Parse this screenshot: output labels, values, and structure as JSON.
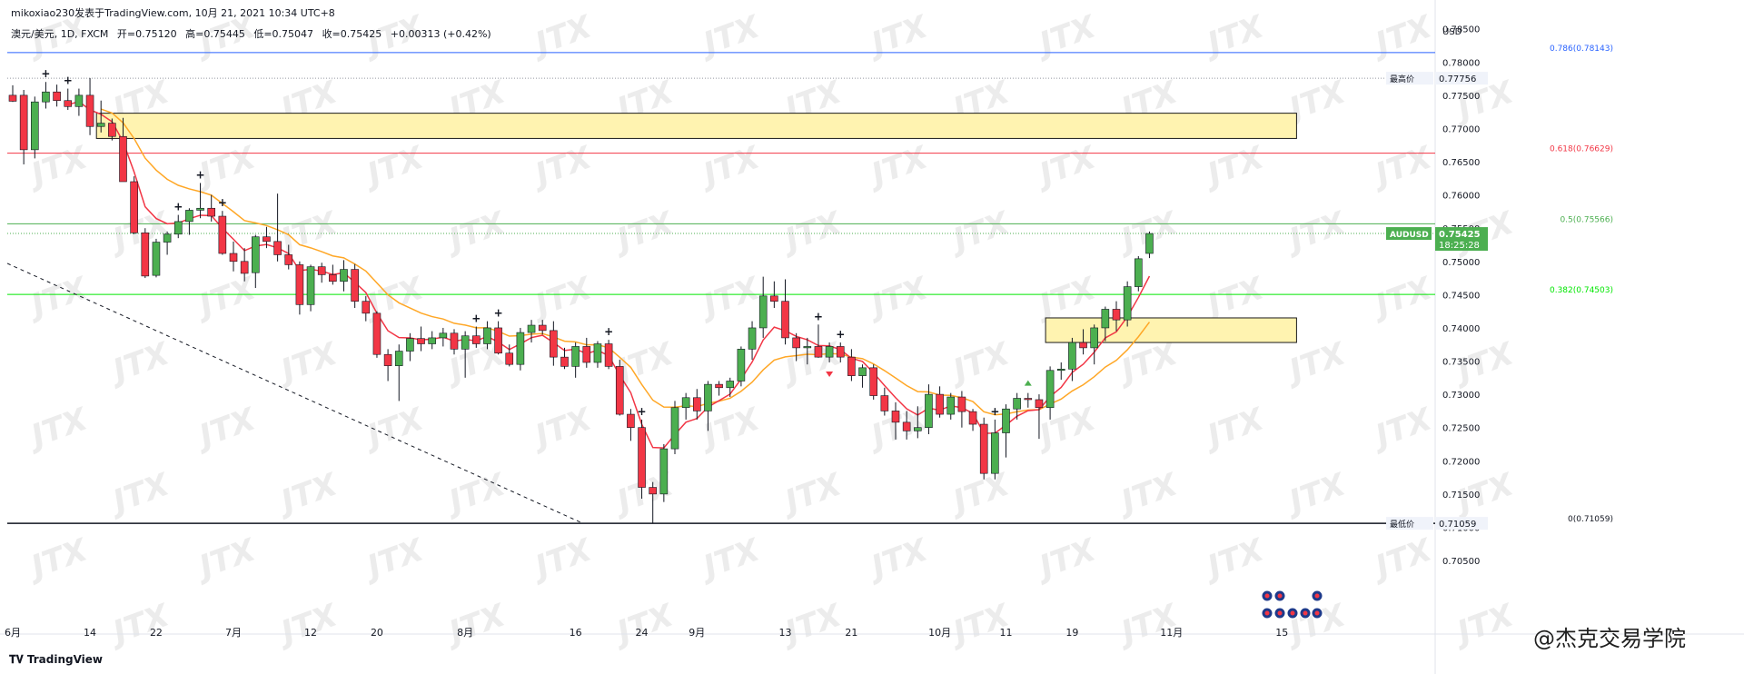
{
  "header": {
    "author_line": "mikoxiao230发表于TradingView.com, 10月 21, 2021 10:34 UTC+8",
    "symbol": "澳元/美元, 1D, FXCM",
    "open": "开=0.75120",
    "high": "高=0.75445",
    "low": "低=0.75047",
    "close": "收=0.75425",
    "change": "+0.00313 (+0.42%)"
  },
  "currency": "USD",
  "footer": {
    "brand": "TradingView",
    "watermark_brand": "@杰克交易学院"
  },
  "watermark_text": "JTX",
  "colors": {
    "up": "#4caf50",
    "down": "#f23645",
    "ma_fast": "#f23645",
    "ma_slow": "#ffa726",
    "fib_1": "#2962ff",
    "fib_618": "#f23645",
    "fib_5": "#4caf50",
    "fib_382": "#00e600",
    "zone": "#fff3b0",
    "zone_border": "#1a1a1a"
  },
  "price_tags": {
    "symbol": "AUDUSD",
    "last": "0.75425",
    "countdown": "18:25:28",
    "high_label": "最高价",
    "high_value": "0.77756",
    "low_label": "最低价",
    "low_value": "0.71059"
  },
  "chart_data": {
    "type": "candlestick",
    "title": "",
    "ylim": [
      0.7035,
      0.7866
    ],
    "y_ticks": [
      "0.78500",
      "0.78000",
      "0.77500",
      "0.77000",
      "0.76500",
      "0.76000",
      "0.75500",
      "0.75000",
      "0.74500",
      "0.74000",
      "0.73500",
      "0.73000",
      "0.72500",
      "0.72000",
      "0.71500",
      "0.71000",
      "0.70500"
    ],
    "x_ticks": [
      {
        "label": "6月",
        "index": 0
      },
      {
        "label": "14",
        "index": 7
      },
      {
        "label": "22",
        "index": 13
      },
      {
        "label": "7月",
        "index": 20
      },
      {
        "label": "12",
        "index": 27
      },
      {
        "label": "20",
        "index": 33
      },
      {
        "label": "8月",
        "index": 41
      },
      {
        "label": "16",
        "index": 51
      },
      {
        "label": "24",
        "index": 57
      },
      {
        "label": "9月",
        "index": 62
      },
      {
        "label": "13",
        "index": 70
      },
      {
        "label": "21",
        "index": 76
      },
      {
        "label": "10月",
        "index": 84
      },
      {
        "label": "11",
        "index": 90
      },
      {
        "label": "19",
        "index": 96
      },
      {
        "label": "11月",
        "index": 105
      },
      {
        "label": "15",
        "index": 115
      }
    ],
    "fib_levels": [
      {
        "label": "0.786(0.78143)",
        "value": 0.78143,
        "color": "#2962ff"
      },
      {
        "label": "0.618(0.76629)",
        "value": 0.76629,
        "color": "#f23645"
      },
      {
        "label": "0.5(0.75566)",
        "value": 0.75566,
        "color": "#4caf50"
      },
      {
        "label": "0.382(0.74503)",
        "value": 0.74503,
        "color": "#00e600"
      },
      {
        "label": "0(0.71059)",
        "value": 0.71059,
        "color": "#131722"
      }
    ],
    "zones": [
      {
        "from_index": 8,
        "to_index": 116,
        "top": 0.7723,
        "bottom": 0.7685
      },
      {
        "from_index": 94,
        "to_index": 116,
        "top": 0.7415,
        "bottom": 0.7378
      }
    ],
    "trendline": {
      "from": {
        "index": 0,
        "value": 0.7497
      },
      "to": {
        "index": 51,
        "value": 0.71059
      }
    },
    "candles": [
      {
        "o": 0.775,
        "h": 0.7765,
        "l": 0.774,
        "c": 0.7741
      },
      {
        "o": 0.775,
        "h": 0.7758,
        "l": 0.7646,
        "c": 0.7668
      },
      {
        "o": 0.7668,
        "h": 0.7748,
        "l": 0.7655,
        "c": 0.774
      },
      {
        "o": 0.774,
        "h": 0.777,
        "l": 0.773,
        "c": 0.7755
      },
      {
        "o": 0.7755,
        "h": 0.7766,
        "l": 0.7733,
        "c": 0.7742
      },
      {
        "o": 0.7742,
        "h": 0.776,
        "l": 0.7728,
        "c": 0.7733
      },
      {
        "o": 0.7733,
        "h": 0.776,
        "l": 0.7719,
        "c": 0.775
      },
      {
        "o": 0.775,
        "h": 0.7776,
        "l": 0.769,
        "c": 0.7703
      },
      {
        "o": 0.7703,
        "h": 0.7742,
        "l": 0.7694,
        "c": 0.7708
      },
      {
        "o": 0.7708,
        "h": 0.7715,
        "l": 0.7682,
        "c": 0.7688
      },
      {
        "o": 0.7688,
        "h": 0.7716,
        "l": 0.762,
        "c": 0.762
      },
      {
        "o": 0.762,
        "h": 0.7628,
        "l": 0.7541,
        "c": 0.7543
      },
      {
        "o": 0.7543,
        "h": 0.755,
        "l": 0.7475,
        "c": 0.7478
      },
      {
        "o": 0.7479,
        "h": 0.7534,
        "l": 0.7476,
        "c": 0.7529
      },
      {
        "o": 0.7529,
        "h": 0.7545,
        "l": 0.751,
        "c": 0.7541
      },
      {
        "o": 0.7541,
        "h": 0.757,
        "l": 0.7535,
        "c": 0.756
      },
      {
        "o": 0.756,
        "h": 0.758,
        "l": 0.754,
        "c": 0.7577
      },
      {
        "o": 0.7577,
        "h": 0.7618,
        "l": 0.7565,
        "c": 0.758
      },
      {
        "o": 0.758,
        "h": 0.76,
        "l": 0.756,
        "c": 0.7568
      },
      {
        "o": 0.7568,
        "h": 0.7576,
        "l": 0.751,
        "c": 0.7512
      },
      {
        "o": 0.7512,
        "h": 0.753,
        "l": 0.7485,
        "c": 0.75
      },
      {
        "o": 0.75,
        "h": 0.752,
        "l": 0.747,
        "c": 0.7482
      },
      {
        "o": 0.7483,
        "h": 0.754,
        "l": 0.746,
        "c": 0.7537
      },
      {
        "o": 0.7537,
        "h": 0.7552,
        "l": 0.752,
        "c": 0.753
      },
      {
        "o": 0.753,
        "h": 0.7602,
        "l": 0.75,
        "c": 0.751
      },
      {
        "o": 0.751,
        "h": 0.7525,
        "l": 0.7488,
        "c": 0.7495
      },
      {
        "o": 0.7495,
        "h": 0.75,
        "l": 0.742,
        "c": 0.7435
      },
      {
        "o": 0.7435,
        "h": 0.7495,
        "l": 0.7425,
        "c": 0.7492
      },
      {
        "o": 0.7492,
        "h": 0.7498,
        "l": 0.7468,
        "c": 0.748
      },
      {
        "o": 0.748,
        "h": 0.7495,
        "l": 0.7465,
        "c": 0.747
      },
      {
        "o": 0.747,
        "h": 0.7502,
        "l": 0.7455,
        "c": 0.7488
      },
      {
        "o": 0.7488,
        "h": 0.7496,
        "l": 0.743,
        "c": 0.744
      },
      {
        "o": 0.744,
        "h": 0.7448,
        "l": 0.741,
        "c": 0.7422
      },
      {
        "o": 0.7422,
        "h": 0.7425,
        "l": 0.7355,
        "c": 0.736
      },
      {
        "o": 0.736,
        "h": 0.7368,
        "l": 0.732,
        "c": 0.7343
      },
      {
        "o": 0.7343,
        "h": 0.7375,
        "l": 0.729,
        "c": 0.7365
      },
      {
        "o": 0.7365,
        "h": 0.7392,
        "l": 0.735,
        "c": 0.7384
      },
      {
        "o": 0.7384,
        "h": 0.7402,
        "l": 0.7365,
        "c": 0.7376
      },
      {
        "o": 0.7376,
        "h": 0.7395,
        "l": 0.7368,
        "c": 0.7385
      },
      {
        "o": 0.7385,
        "h": 0.74,
        "l": 0.7372,
        "c": 0.7392
      },
      {
        "o": 0.7392,
        "h": 0.7398,
        "l": 0.736,
        "c": 0.7368
      },
      {
        "o": 0.7368,
        "h": 0.7395,
        "l": 0.7325,
        "c": 0.7388
      },
      {
        "o": 0.7388,
        "h": 0.7402,
        "l": 0.737,
        "c": 0.7376
      },
      {
        "o": 0.7376,
        "h": 0.741,
        "l": 0.7368,
        "c": 0.74
      },
      {
        "o": 0.74,
        "h": 0.741,
        "l": 0.736,
        "c": 0.7362
      },
      {
        "o": 0.7362,
        "h": 0.7375,
        "l": 0.7342,
        "c": 0.7345
      },
      {
        "o": 0.7345,
        "h": 0.74,
        "l": 0.7336,
        "c": 0.7393
      },
      {
        "o": 0.7393,
        "h": 0.7412,
        "l": 0.7378,
        "c": 0.7404
      },
      {
        "o": 0.7404,
        "h": 0.7412,
        "l": 0.739,
        "c": 0.7396
      },
      {
        "o": 0.7396,
        "h": 0.741,
        "l": 0.7343,
        "c": 0.7356
      },
      {
        "o": 0.7356,
        "h": 0.737,
        "l": 0.7338,
        "c": 0.7342
      },
      {
        "o": 0.7342,
        "h": 0.7378,
        "l": 0.7325,
        "c": 0.7372
      },
      {
        "o": 0.7372,
        "h": 0.7385,
        "l": 0.734,
        "c": 0.7348
      },
      {
        "o": 0.7348,
        "h": 0.738,
        "l": 0.734,
        "c": 0.7376
      },
      {
        "o": 0.7376,
        "h": 0.7382,
        "l": 0.7338,
        "c": 0.7342
      },
      {
        "o": 0.7342,
        "h": 0.7352,
        "l": 0.7268,
        "c": 0.727
      },
      {
        "o": 0.727,
        "h": 0.7278,
        "l": 0.723,
        "c": 0.725
      },
      {
        "o": 0.725,
        "h": 0.7262,
        "l": 0.7143,
        "c": 0.716
      },
      {
        "o": 0.716,
        "h": 0.7168,
        "l": 0.7106,
        "c": 0.715
      },
      {
        "o": 0.715,
        "h": 0.7225,
        "l": 0.7138,
        "c": 0.7218
      },
      {
        "o": 0.7218,
        "h": 0.729,
        "l": 0.721,
        "c": 0.728
      },
      {
        "o": 0.728,
        "h": 0.7302,
        "l": 0.7262,
        "c": 0.7295
      },
      {
        "o": 0.7295,
        "h": 0.7308,
        "l": 0.7262,
        "c": 0.7275
      },
      {
        "o": 0.7275,
        "h": 0.732,
        "l": 0.7245,
        "c": 0.7315
      },
      {
        "o": 0.7315,
        "h": 0.732,
        "l": 0.7298,
        "c": 0.731
      },
      {
        "o": 0.731,
        "h": 0.7325,
        "l": 0.7296,
        "c": 0.732
      },
      {
        "o": 0.732,
        "h": 0.7372,
        "l": 0.7312,
        "c": 0.7368
      },
      {
        "o": 0.7368,
        "h": 0.741,
        "l": 0.7352,
        "c": 0.74
      },
      {
        "o": 0.74,
        "h": 0.7477,
        "l": 0.7385,
        "c": 0.7448
      },
      {
        "o": 0.7448,
        "h": 0.747,
        "l": 0.743,
        "c": 0.744
      },
      {
        "o": 0.744,
        "h": 0.7473,
        "l": 0.7375,
        "c": 0.7385
      },
      {
        "o": 0.7385,
        "h": 0.7392,
        "l": 0.735,
        "c": 0.737
      },
      {
        "o": 0.737,
        "h": 0.7385,
        "l": 0.7345,
        "c": 0.7372
      },
      {
        "o": 0.7372,
        "h": 0.7405,
        "l": 0.7355,
        "c": 0.7356
      },
      {
        "o": 0.7356,
        "h": 0.7378,
        "l": 0.7348,
        "c": 0.7372
      },
      {
        "o": 0.7372,
        "h": 0.7378,
        "l": 0.7348,
        "c": 0.7356
      },
      {
        "o": 0.7356,
        "h": 0.7368,
        "l": 0.732,
        "c": 0.7328
      },
      {
        "o": 0.7328,
        "h": 0.7345,
        "l": 0.731,
        "c": 0.734
      },
      {
        "o": 0.734,
        "h": 0.7345,
        "l": 0.7292,
        "c": 0.7298
      },
      {
        "o": 0.7298,
        "h": 0.731,
        "l": 0.7268,
        "c": 0.7275
      },
      {
        "o": 0.7275,
        "h": 0.7288,
        "l": 0.7232,
        "c": 0.7258
      },
      {
        "o": 0.7258,
        "h": 0.7275,
        "l": 0.7232,
        "c": 0.7245
      },
      {
        "o": 0.7245,
        "h": 0.7282,
        "l": 0.7234,
        "c": 0.725
      },
      {
        "o": 0.725,
        "h": 0.7315,
        "l": 0.724,
        "c": 0.73
      },
      {
        "o": 0.73,
        "h": 0.7312,
        "l": 0.7265,
        "c": 0.727
      },
      {
        "o": 0.727,
        "h": 0.7302,
        "l": 0.7262,
        "c": 0.7296
      },
      {
        "o": 0.7296,
        "h": 0.7305,
        "l": 0.725,
        "c": 0.7274
      },
      {
        "o": 0.7274,
        "h": 0.7278,
        "l": 0.7245,
        "c": 0.7255
      },
      {
        "o": 0.7255,
        "h": 0.7265,
        "l": 0.7172,
        "c": 0.7181
      },
      {
        "o": 0.7181,
        "h": 0.7262,
        "l": 0.7172,
        "c": 0.7242
      },
      {
        "o": 0.7242,
        "h": 0.7285,
        "l": 0.7205,
        "c": 0.7278
      },
      {
        "o": 0.7278,
        "h": 0.7302,
        "l": 0.7262,
        "c": 0.7294
      },
      {
        "o": 0.7294,
        "h": 0.7302,
        "l": 0.728,
        "c": 0.7292
      },
      {
        "o": 0.7292,
        "h": 0.73,
        "l": 0.7233,
        "c": 0.728
      },
      {
        "o": 0.728,
        "h": 0.7342,
        "l": 0.7262,
        "c": 0.7336
      },
      {
        "o": 0.7336,
        "h": 0.7348,
        "l": 0.7322,
        "c": 0.7338
      },
      {
        "o": 0.7338,
        "h": 0.7385,
        "l": 0.732,
        "c": 0.7378
      },
      {
        "o": 0.7378,
        "h": 0.7398,
        "l": 0.736,
        "c": 0.737
      },
      {
        "o": 0.737,
        "h": 0.7405,
        "l": 0.7345,
        "c": 0.74
      },
      {
        "o": 0.74,
        "h": 0.7432,
        "l": 0.738,
        "c": 0.7428
      },
      {
        "o": 0.7428,
        "h": 0.744,
        "l": 0.7395,
        "c": 0.7412
      },
      {
        "o": 0.7412,
        "h": 0.747,
        "l": 0.7402,
        "c": 0.7462
      },
      {
        "o": 0.7462,
        "h": 0.7508,
        "l": 0.7455,
        "c": 0.7504
      },
      {
        "o": 0.7512,
        "h": 0.7545,
        "l": 0.7505,
        "c": 0.7542
      }
    ],
    "markers_plus": [
      3,
      5,
      15,
      17,
      19,
      42,
      44,
      54,
      57,
      73,
      75,
      89
    ],
    "marker_down_index": 74,
    "marker_up_index": 92,
    "ma_fast_period": 5,
    "ma_slow_period": 13
  }
}
